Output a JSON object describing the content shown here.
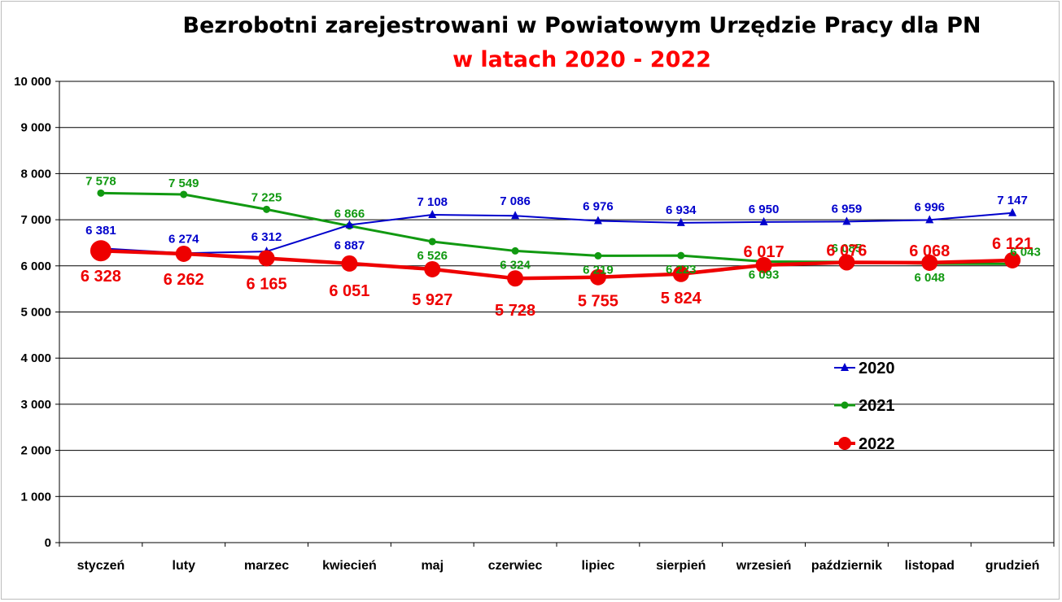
{
  "chart_data": {
    "type": "line",
    "title": "Bezrobotni zarejestrowani w Powiatowym Urzędzie Pracy dla PN",
    "subtitle": "w latach 2020 - 2022",
    "categories": [
      "styczeń",
      "luty",
      "marzec",
      "kwiecień",
      "maj",
      "czerwiec",
      "lipiec",
      "sierpień",
      "wrzesień",
      "październik",
      "listopad",
      "grudzień"
    ],
    "ylim": [
      0,
      10000
    ],
    "yticks": [
      0,
      1000,
      2000,
      3000,
      4000,
      5000,
      6000,
      7000,
      8000,
      9000,
      10000
    ],
    "ytick_labels": [
      "0",
      "1 000",
      "2 000",
      "3 000",
      "4 000",
      "5 000",
      "6 000",
      "7 000",
      "8 000",
      "9 000",
      "10 000"
    ],
    "grid": true,
    "legend_position": "right",
    "series": [
      {
        "name": "2020",
        "color": "#0000cc",
        "marker": "triangle",
        "values": [
          6381,
          6274,
          6312,
          6887,
          7108,
          7086,
          6976,
          6934,
          6950,
          6959,
          6996,
          7147
        ],
        "labels": [
          "6 381",
          "6 274",
          "6 312",
          "6 887",
          "7 108",
          "7 086",
          "6 976",
          "6 934",
          "6 950",
          "6 959",
          "6 996",
          "7 147"
        ]
      },
      {
        "name": "2021",
        "color": "#119911",
        "marker": "circle",
        "values": [
          7578,
          7549,
          7225,
          6866,
          6526,
          6324,
          6219,
          6223,
          6093,
          6085,
          6048,
          6043
        ],
        "labels": [
          "7 578",
          "7 549",
          "7 225",
          "6 866",
          "6 526",
          "6 324",
          "6 219",
          "6 223",
          "6 093",
          "6 085",
          "6 048",
          "6 043"
        ]
      },
      {
        "name": "2022",
        "color": "#ee0000",
        "marker": "circle-large",
        "values": [
          6328,
          6262,
          6165,
          6051,
          5927,
          5728,
          5755,
          5824,
          6017,
          6076,
          6068,
          6121
        ],
        "labels": [
          "6 328",
          "6 262",
          "6 165",
          "6 051",
          "5 927",
          "5 728",
          "5 755",
          "5 824",
          "6 017",
          "6 076",
          "6 068",
          "6 121"
        ]
      }
    ]
  }
}
